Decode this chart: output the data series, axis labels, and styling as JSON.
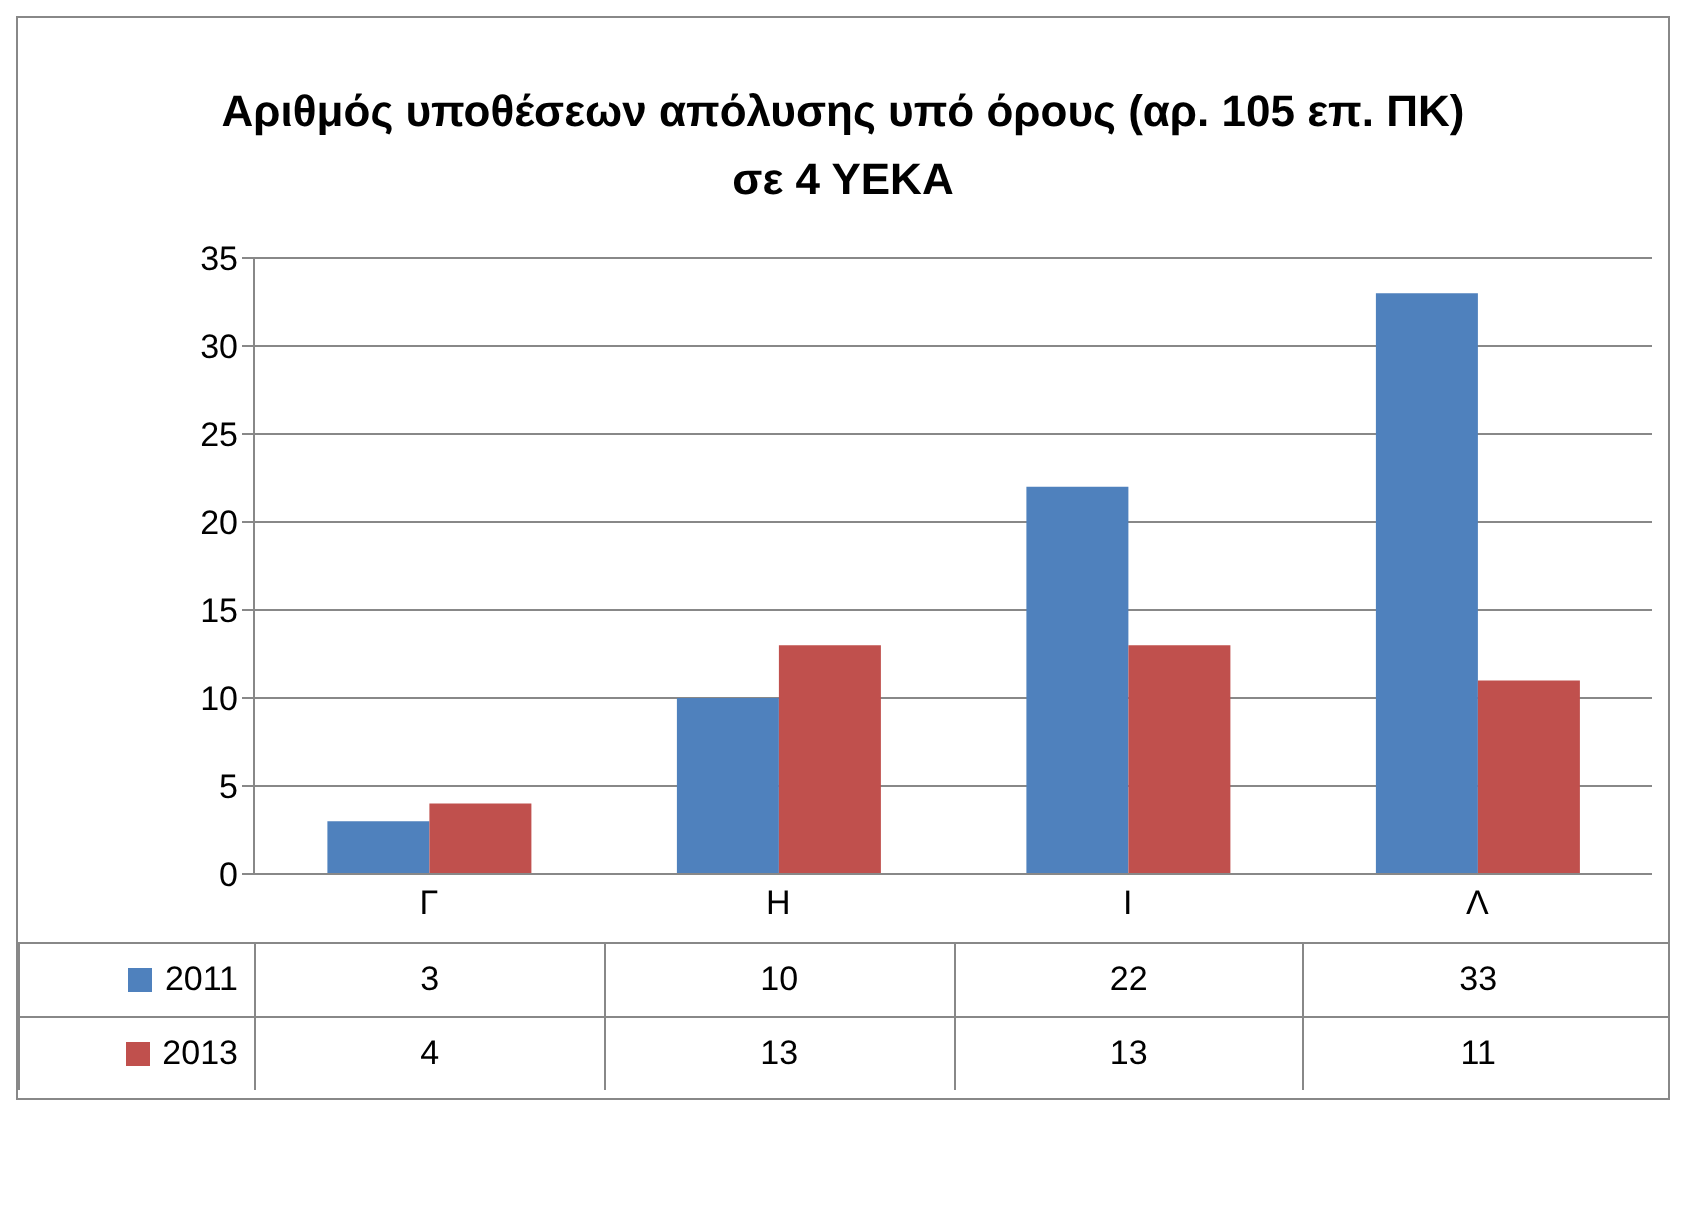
{
  "chart_data": {
    "type": "bar",
    "title": "Αριθμός υποθέσεων απόλυσης υπό όρους (αρ. 105 επ. ΠΚ) σε 4 ΥΕΚΑ",
    "categories": [
      "Γ",
      "Η",
      "Ι",
      "Λ"
    ],
    "series": [
      {
        "name": "2011",
        "color": "#4f81bd",
        "values": [
          3,
          10,
          22,
          33
        ]
      },
      {
        "name": "2013",
        "color": "#c0504d",
        "values": [
          4,
          13,
          13,
          11
        ]
      }
    ],
    "ylim": [
      0,
      35
    ],
    "yticks": [
      0,
      5,
      10,
      15,
      20,
      25,
      30,
      35
    ],
    "grid": "y",
    "legend": "bottom",
    "data_labels": true
  }
}
